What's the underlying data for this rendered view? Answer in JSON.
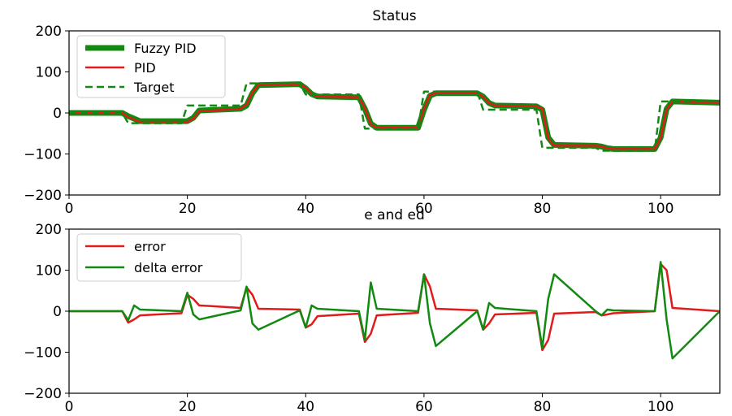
{
  "chart_data": [
    {
      "type": "line",
      "title": "Status",
      "xlabel": "",
      "ylabel": "",
      "xlim": [
        0,
        110
      ],
      "ylim": [
        -200,
        200
      ],
      "xticks": [
        "0",
        "20",
        "40",
        "60",
        "80",
        "100"
      ],
      "yticks": [
        "200",
        "100",
        "0",
        "−100",
        "−200"
      ],
      "grid": false,
      "legend": "top-left",
      "series": [
        {
          "name": "Fuzzy PID",
          "color": "#128a12",
          "style": "solid-thick",
          "x": [
            0,
            9,
            10,
            12,
            20,
            21,
            22,
            29,
            30,
            31,
            32,
            39,
            40,
            41,
            42,
            49,
            50,
            51,
            52,
            59,
            60,
            61,
            62,
            69,
            70,
            71,
            72,
            79,
            80,
            81,
            82,
            89,
            90,
            91,
            92,
            99,
            100,
            101,
            102,
            110
          ],
          "values": [
            0,
            0,
            -8,
            -20,
            -20,
            -12,
            6,
            10,
            18,
            48,
            68,
            70,
            60,
            46,
            40,
            38,
            10,
            -26,
            -36,
            -36,
            8,
            42,
            48,
            48,
            40,
            24,
            18,
            16,
            8,
            -60,
            -78,
            -80,
            -82,
            -86,
            -88,
            -88,
            -60,
            10,
            28,
            25
          ]
        },
        {
          "name": "PID",
          "color": "#e01b1b",
          "style": "solid",
          "x": [
            0,
            9,
            10,
            12,
            20,
            21,
            22,
            29,
            30,
            31,
            32,
            39,
            40,
            41,
            42,
            49,
            50,
            51,
            52,
            59,
            60,
            61,
            62,
            69,
            70,
            71,
            72,
            79,
            80,
            81,
            82,
            89,
            90,
            91,
            92,
            99,
            100,
            101,
            102,
            110
          ],
          "values": [
            0,
            0,
            -10,
            -22,
            -22,
            -14,
            4,
            10,
            20,
            50,
            68,
            70,
            62,
            46,
            40,
            38,
            12,
            -28,
            -36,
            -36,
            10,
            44,
            48,
            48,
            40,
            24,
            18,
            16,
            10,
            -62,
            -80,
            -80,
            -82,
            -86,
            -88,
            -88,
            -62,
            8,
            28,
            25
          ]
        },
        {
          "name": "Target",
          "color": "#128a12",
          "style": "dashed",
          "x": [
            0,
            9,
            10,
            19,
            20,
            29,
            30,
            39,
            40,
            49,
            50,
            59,
            60,
            69,
            70,
            79,
            80,
            89,
            90,
            99,
            100,
            110
          ],
          "values": [
            0,
            0,
            -25,
            -25,
            18,
            18,
            72,
            72,
            45,
            45,
            -38,
            -38,
            52,
            52,
            8,
            8,
            -85,
            -85,
            -92,
            -92,
            28,
            28
          ]
        }
      ]
    },
    {
      "type": "line",
      "title": "e and ed",
      "xlabel": "",
      "ylabel": "",
      "xlim": [
        0,
        110
      ],
      "ylim": [
        -200,
        200
      ],
      "xticks": [
        "0",
        "20",
        "40",
        "60",
        "80",
        "100"
      ],
      "yticks": [
        "200",
        "100",
        "0",
        "−100",
        "−200"
      ],
      "grid": false,
      "legend": "top-left",
      "series": [
        {
          "name": "error",
          "color": "#e01b1b",
          "x": [
            0,
            9,
            10,
            11,
            12,
            19,
            20,
            21,
            22,
            29,
            30,
            31,
            32,
            39,
            40,
            41,
            42,
            49,
            50,
            51,
            52,
            59,
            60,
            61,
            62,
            69,
            70,
            71,
            72,
            79,
            80,
            81,
            82,
            89,
            90,
            91,
            92,
            99,
            100,
            101,
            102,
            110
          ],
          "values": [
            0,
            0,
            -28,
            -20,
            -10,
            -5,
            40,
            30,
            14,
            8,
            58,
            40,
            6,
            4,
            -40,
            -32,
            -12,
            -6,
            -75,
            -55,
            -10,
            -4,
            90,
            60,
            6,
            2,
            -45,
            -30,
            -8,
            -4,
            -95,
            -70,
            -6,
            -2,
            -10,
            -8,
            -5,
            0,
            115,
            100,
            8,
            0
          ]
        },
        {
          "name": "delta error",
          "color": "#128a12",
          "x": [
            0,
            9,
            10,
            11,
            12,
            19,
            20,
            21,
            22,
            29,
            30,
            31,
            32,
            39,
            40,
            41,
            42,
            49,
            50,
            51,
            52,
            59,
            60,
            61,
            62,
            69,
            70,
            71,
            72,
            79,
            80,
            81,
            82,
            89,
            90,
            91,
            92,
            99,
            100,
            101,
            102,
            110
          ],
          "values": [
            0,
            0,
            -22,
            14,
            4,
            0,
            45,
            -8,
            -20,
            2,
            60,
            -30,
            -45,
            2,
            -40,
            14,
            6,
            0,
            -70,
            70,
            6,
            0,
            90,
            -30,
            -85,
            0,
            -45,
            20,
            8,
            0,
            -90,
            30,
            90,
            0,
            -10,
            4,
            2,
            0,
            120,
            -20,
            -115,
            0
          ]
        }
      ]
    }
  ]
}
